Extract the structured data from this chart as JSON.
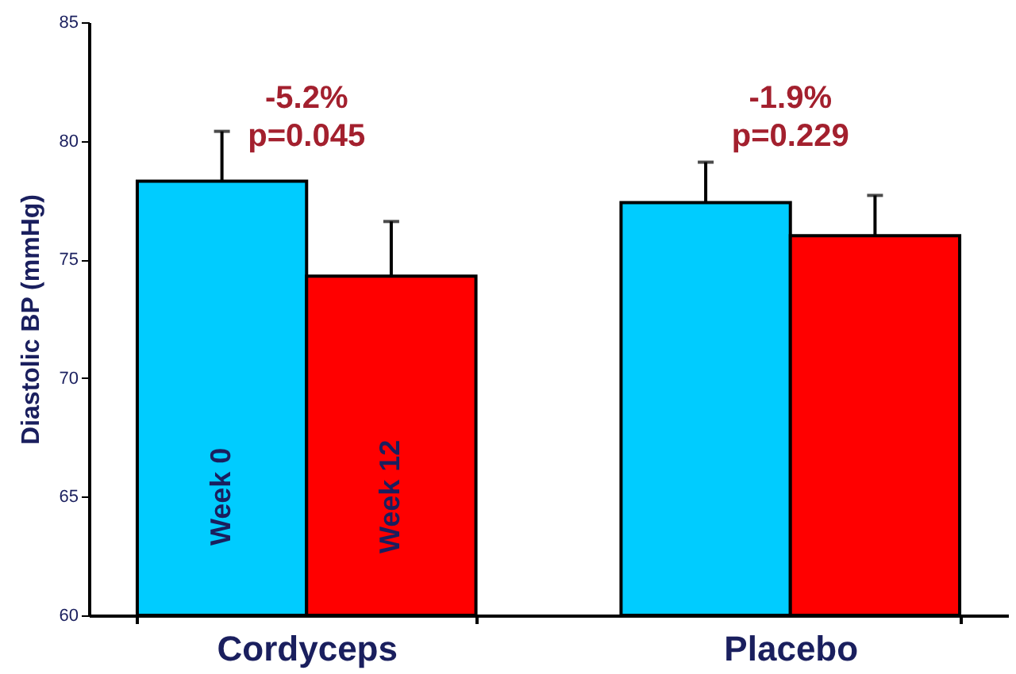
{
  "chart_data": {
    "type": "bar",
    "ylabel": "Diastolic BP (mmHg)",
    "categories": [
      "Cordyceps",
      "Placebo"
    ],
    "series": [
      {
        "name": "Week 0",
        "color": "#00ccff",
        "values": [
          78.3,
          77.4
        ],
        "errors": [
          2.1,
          1.7
        ]
      },
      {
        "name": "Week 12",
        "color": "#ff0000",
        "values": [
          74.3,
          76.0
        ],
        "errors": [
          2.3,
          1.7
        ]
      }
    ],
    "ylim": [
      60,
      85
    ],
    "yticks": [
      60,
      65,
      70,
      75,
      80,
      85
    ],
    "grid": false,
    "legend": false,
    "annotations": [
      "-5.2%\np=0.045",
      "-1.9%\np=0.229"
    ]
  }
}
